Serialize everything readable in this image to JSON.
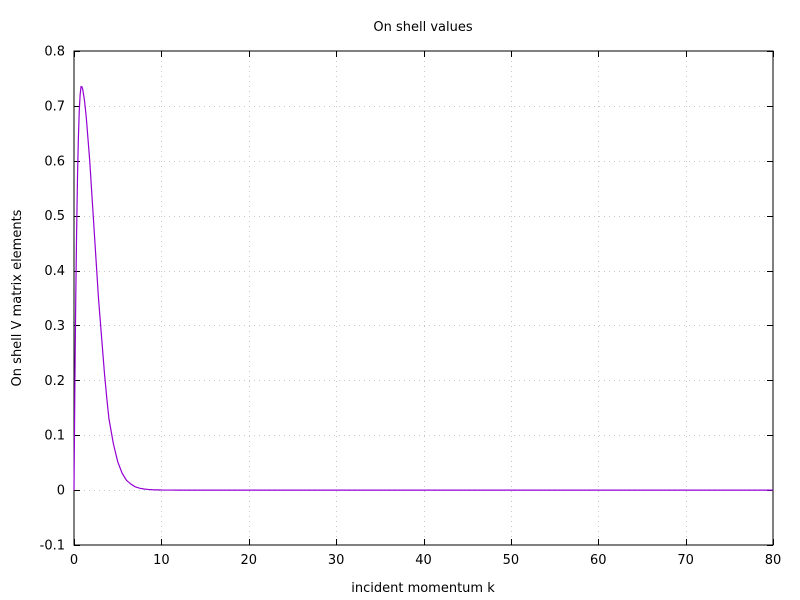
{
  "chart_data": {
    "type": "line",
    "title": "On shell values",
    "xlabel": "incident momentum k",
    "ylabel": "On shell V matrix elements",
    "xlim": [
      0,
      80
    ],
    "ylim": [
      -0.1,
      0.8
    ],
    "xticks": [
      0,
      10,
      20,
      30,
      40,
      50,
      60,
      70,
      80
    ],
    "yticks": [
      -0.1,
      0,
      0.1,
      0.2,
      0.3,
      0.4,
      0.5,
      0.6,
      0.7,
      0.8
    ],
    "xtick_labels": [
      "0",
      "10",
      "20",
      "30",
      "40",
      "50",
      "60",
      "70",
      "80"
    ],
    "ytick_labels": [
      "-0.1",
      "0",
      "0.1",
      "0.2",
      "0.3",
      "0.4",
      "0.5",
      "0.6",
      "0.7",
      "0.8"
    ],
    "grid": true,
    "legend": "none",
    "series": [
      {
        "color": "#9400d3",
        "x": [
          0,
          0.1,
          0.2,
          0.3,
          0.4,
          0.5,
          0.6,
          0.7,
          0.8,
          0.9,
          1.0,
          1.1,
          1.2,
          1.4,
          1.6,
          1.8,
          2.0,
          2.2,
          2.4,
          2.6,
          2.8,
          3.0,
          3.2,
          3.5,
          3.8,
          4.0,
          4.5,
          5.0,
          5.5,
          6.0,
          6.5,
          7.0,
          7.5,
          8.0,
          8.5,
          9.0,
          10,
          11,
          12,
          13,
          14,
          15,
          20,
          30,
          40,
          50,
          60,
          70,
          80
        ],
        "y": [
          0,
          0.19,
          0.35,
          0.47,
          0.57,
          0.64,
          0.69,
          0.72,
          0.735,
          0.735,
          0.73,
          0.72,
          0.71,
          0.68,
          0.64,
          0.6,
          0.55,
          0.5,
          0.45,
          0.4,
          0.35,
          0.31,
          0.27,
          0.21,
          0.16,
          0.13,
          0.085,
          0.052,
          0.031,
          0.018,
          0.011,
          0.006,
          0.0035,
          0.002,
          0.0012,
          0.0007,
          0.0002,
          0.0001,
          0,
          0,
          0,
          0,
          0,
          0,
          0,
          0,
          0,
          0,
          0
        ]
      }
    ]
  }
}
